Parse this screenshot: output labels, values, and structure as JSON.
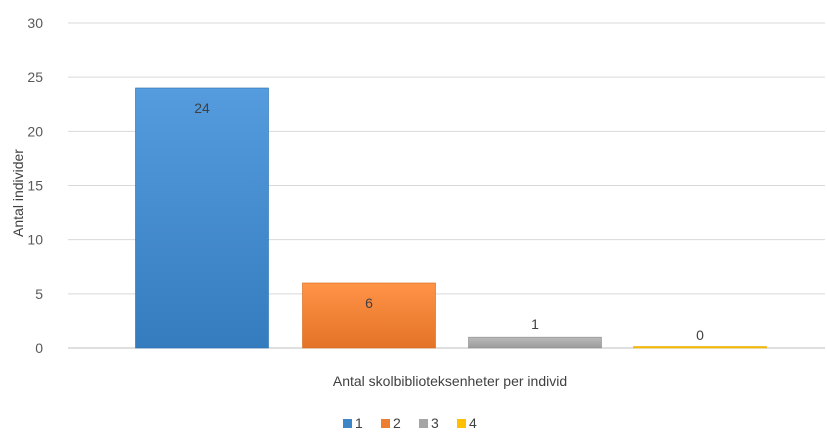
{
  "chart_data": {
    "type": "bar",
    "title": "",
    "xlabel": "Antal skolbiblioteksenheter per individ",
    "ylabel": "Antal individer",
    "ylim": [
      0,
      30
    ],
    "yticks": [
      0,
      5,
      10,
      15,
      20,
      25,
      30
    ],
    "grid": true,
    "legend_position": "bottom",
    "series": [
      {
        "name": "1",
        "values": [
          24
        ],
        "color": "#3f86c8"
      },
      {
        "name": "2",
        "values": [
          6
        ],
        "color": "#ed7d31"
      },
      {
        "name": "3",
        "values": [
          1
        ],
        "color": "#a5a5a5"
      },
      {
        "name": "4",
        "values": [
          0
        ],
        "color": "#ffc000"
      }
    ]
  }
}
